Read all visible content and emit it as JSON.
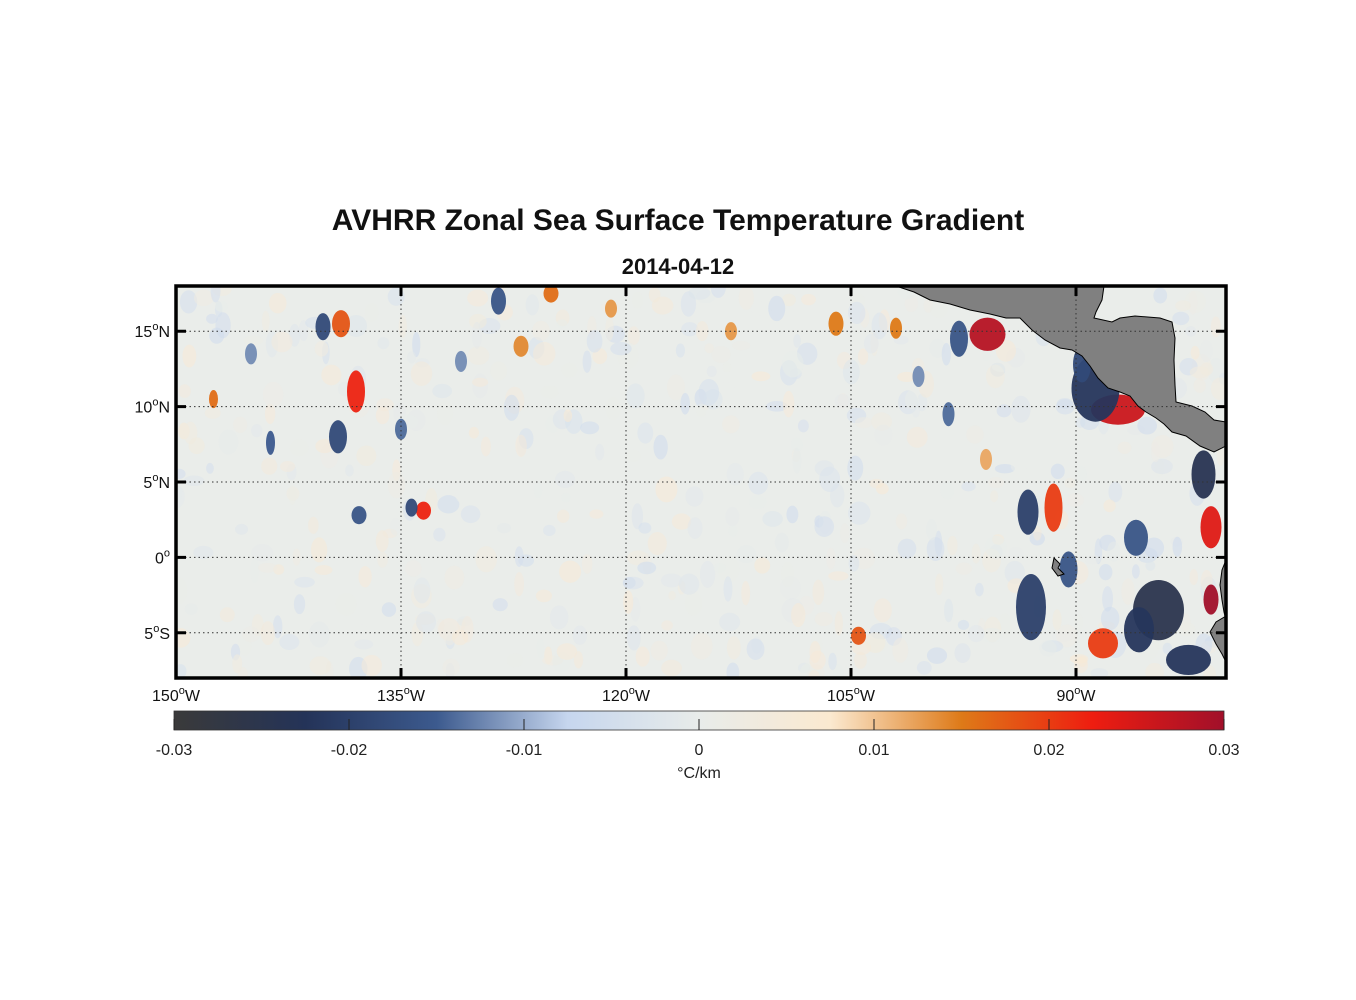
{
  "title": "AVHRR Zonal Sea Surface Temperature Gradient",
  "date": "2014-04-12",
  "colors": {
    "land": "#808080",
    "colormap": [
      "#3a3a3a",
      "#243358",
      "#3c5a8e",
      "#c6d6ee",
      "#e8ecea",
      "#fbe9d0",
      "#de7a18",
      "#ee1d10",
      "#a1102a"
    ]
  },
  "chart_data": {
    "type": "heatmap",
    "title": "AVHRR Zonal Sea Surface Temperature Gradient",
    "subtitle": "2014-04-12",
    "lon_range": [
      -150,
      -80
    ],
    "lat_range": [
      -8,
      18
    ],
    "lon_ticks": [
      {
        "value": -150,
        "deg": "150",
        "hemi": "W"
      },
      {
        "value": -135,
        "deg": "135",
        "hemi": "W"
      },
      {
        "value": -120,
        "deg": "120",
        "hemi": "W"
      },
      {
        "value": -105,
        "deg": "105",
        "hemi": "W"
      },
      {
        "value": -90,
        "deg": "90",
        "hemi": "W"
      }
    ],
    "lat_ticks": [
      {
        "value": 15,
        "deg": "15",
        "hemi": "N"
      },
      {
        "value": 10,
        "deg": "10",
        "hemi": "N"
      },
      {
        "value": 5,
        "deg": "5",
        "hemi": "N"
      },
      {
        "value": 0,
        "deg": "0",
        "hemi": ""
      },
      {
        "value": -5,
        "deg": "5",
        "hemi": "S"
      }
    ],
    "colorbar": {
      "range": [
        -0.03,
        0.03
      ],
      "ticks": [
        -0.03,
        -0.02,
        -0.01,
        0,
        0.01,
        0.02,
        0.03
      ],
      "tick_labels": [
        "-0.03",
        "-0.02",
        "-0.01",
        "0",
        "0.01",
        "0.02",
        "0.03"
      ],
      "label": "°C/km"
    },
    "features": [
      {
        "lon": -95.9,
        "lat": 14.8,
        "value": 0.028,
        "rlon": 1.2,
        "rlat": 1.1
      },
      {
        "lon": -87.2,
        "lat": 9.8,
        "value": 0.026,
        "rlon": 1.8,
        "rlat": 1.0
      },
      {
        "lon": -88.7,
        "lat": 11.2,
        "value": -0.022,
        "rlon": 1.6,
        "rlat": 2.2
      },
      {
        "lon": -89.6,
        "lat": 12.8,
        "value": -0.018,
        "rlon": 0.6,
        "rlat": 1.2
      },
      {
        "lon": -97.8,
        "lat": 14.5,
        "value": -0.016,
        "rlon": 0.6,
        "rlat": 1.2
      },
      {
        "lon": -81.0,
        "lat": 2.0,
        "value": 0.024,
        "rlon": 0.7,
        "rlat": 1.4
      },
      {
        "lon": -81.0,
        "lat": -2.8,
        "value": 0.03,
        "rlon": 0.5,
        "rlat": 1.0
      },
      {
        "lon": -81.5,
        "lat": 5.5,
        "value": -0.024,
        "rlon": 0.8,
        "rlat": 1.6
      },
      {
        "lon": -84.5,
        "lat": -3.5,
        "value": -0.025,
        "rlon": 1.7,
        "rlat": 2.0
      },
      {
        "lon": -82.5,
        "lat": -6.8,
        "value": -0.022,
        "rlon": 1.5,
        "rlat": 1.0
      },
      {
        "lon": -85.8,
        "lat": -4.8,
        "value": -0.022,
        "rlon": 1.0,
        "rlat": 1.5
      },
      {
        "lon": -88.2,
        "lat": -5.7,
        "value": 0.02,
        "rlon": 1.0,
        "rlat": 1.0
      },
      {
        "lon": -91.5,
        "lat": 3.3,
        "value": 0.02,
        "rlon": 0.6,
        "rlat": 1.6
      },
      {
        "lon": -93.2,
        "lat": 3.0,
        "value": -0.02,
        "rlon": 0.7,
        "rlat": 1.5
      },
      {
        "lon": -93.0,
        "lat": -3.3,
        "value": -0.02,
        "rlon": 1.0,
        "rlat": 2.2
      },
      {
        "lon": -86.0,
        "lat": 1.3,
        "value": -0.016,
        "rlon": 0.8,
        "rlat": 1.2
      },
      {
        "lon": -90.5,
        "lat": -0.8,
        "value": -0.016,
        "rlon": 0.6,
        "rlat": 1.2
      },
      {
        "lon": -138.0,
        "lat": 11.0,
        "value": 0.022,
        "rlon": 0.6,
        "rlat": 1.4
      },
      {
        "lon": -139.0,
        "lat": 15.5,
        "value": 0.018,
        "rlon": 0.6,
        "rlat": 0.9
      },
      {
        "lon": -140.2,
        "lat": 15.3,
        "value": -0.018,
        "rlon": 0.5,
        "rlat": 0.9
      },
      {
        "lon": -139.2,
        "lat": 8.0,
        "value": -0.018,
        "rlon": 0.6,
        "rlat": 1.1
      },
      {
        "lon": -133.5,
        "lat": 3.1,
        "value": 0.022,
        "rlon": 0.5,
        "rlat": 0.6
      },
      {
        "lon": -134.3,
        "lat": 3.3,
        "value": -0.018,
        "rlon": 0.4,
        "rlat": 0.6
      },
      {
        "lon": -137.8,
        "lat": 2.8,
        "value": -0.016,
        "rlon": 0.5,
        "rlat": 0.6
      },
      {
        "lon": -128.5,
        "lat": 17.0,
        "value": -0.016,
        "rlon": 0.5,
        "rlat": 0.9
      },
      {
        "lon": -125.0,
        "lat": 17.5,
        "value": 0.016,
        "rlon": 0.5,
        "rlat": 0.6
      },
      {
        "lon": -127.0,
        "lat": 14.0,
        "value": 0.014,
        "rlon": 0.5,
        "rlat": 0.7
      },
      {
        "lon": -147.5,
        "lat": 10.5,
        "value": 0.016,
        "rlon": 0.3,
        "rlat": 0.6
      },
      {
        "lon": -143.7,
        "lat": 7.6,
        "value": -0.015,
        "rlon": 0.3,
        "rlat": 0.8
      },
      {
        "lon": -135.0,
        "lat": 8.5,
        "value": -0.014,
        "rlon": 0.4,
        "rlat": 0.7
      },
      {
        "lon": -102.0,
        "lat": 15.2,
        "value": 0.015,
        "rlon": 0.4,
        "rlat": 0.7
      },
      {
        "lon": -106.0,
        "lat": 15.5,
        "value": 0.015,
        "rlon": 0.5,
        "rlat": 0.8
      },
      {
        "lon": -104.5,
        "lat": -5.2,
        "value": 0.018,
        "rlon": 0.5,
        "rlat": 0.6
      },
      {
        "lon": -121.0,
        "lat": 16.5,
        "value": 0.013,
        "rlon": 0.4,
        "rlat": 0.6
      },
      {
        "lon": -113.0,
        "lat": 15.0,
        "value": 0.013,
        "rlon": 0.4,
        "rlat": 0.6
      },
      {
        "lon": -98.5,
        "lat": 9.5,
        "value": -0.014,
        "rlon": 0.4,
        "rlat": 0.8
      },
      {
        "lon": -100.5,
        "lat": 12.0,
        "value": -0.012,
        "rlon": 0.4,
        "rlat": 0.7
      },
      {
        "lon": -96.0,
        "lat": 6.5,
        "value": 0.012,
        "rlon": 0.4,
        "rlat": 0.7
      },
      {
        "lon": -145.0,
        "lat": 13.5,
        "value": -0.012,
        "rlon": 0.4,
        "rlat": 0.7
      },
      {
        "lon": -131.0,
        "lat": 13.0,
        "value": -0.012,
        "rlon": 0.4,
        "rlat": 0.7
      }
    ]
  }
}
